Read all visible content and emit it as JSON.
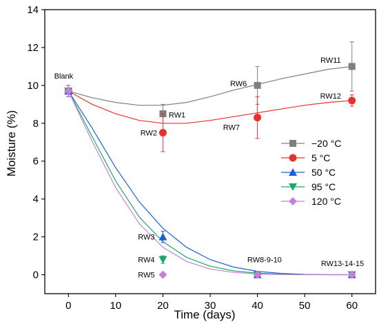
{
  "chart_data": {
    "type": "scatter",
    "xlabel": "Time (days)",
    "ylabel": "Moisture (%)",
    "xlim": [
      -5,
      65
    ],
    "ylim": [
      -1,
      14
    ],
    "xticks": [
      0,
      10,
      20,
      30,
      40,
      50,
      60
    ],
    "yticks": [
      0,
      2,
      4,
      6,
      8,
      10,
      12,
      14
    ],
    "legend_position": "center-right",
    "fit_curves": true,
    "series": [
      {
        "name": "−20 °C",
        "color": "#7f7f7f",
        "marker": "square",
        "x": [
          0,
          20,
          40,
          60
        ],
        "y": [
          9.7,
          8.5,
          10.0,
          11.0
        ],
        "err": [
          0.3,
          0.5,
          1.0,
          1.3
        ],
        "curve": [
          [
            0,
            9.7
          ],
          [
            5,
            9.35
          ],
          [
            10,
            9.1
          ],
          [
            15,
            8.95
          ],
          [
            20,
            8.95
          ],
          [
            25,
            9.1
          ],
          [
            30,
            9.4
          ],
          [
            35,
            9.75
          ],
          [
            40,
            10.05
          ],
          [
            45,
            10.35
          ],
          [
            50,
            10.6
          ],
          [
            55,
            10.85
          ],
          [
            60,
            11.0
          ]
        ]
      },
      {
        "name": "5 °C",
        "color": "#e8312f",
        "marker": "circle",
        "x": [
          0,
          20,
          40,
          60
        ],
        "y": [
          9.7,
          7.5,
          8.3,
          9.2
        ],
        "err": [
          0.3,
          1.0,
          1.1,
          0.3
        ],
        "curve": [
          [
            0,
            9.7
          ],
          [
            5,
            9.0
          ],
          [
            10,
            8.5
          ],
          [
            15,
            8.15
          ],
          [
            20,
            8.0
          ],
          [
            25,
            8.0
          ],
          [
            30,
            8.15
          ],
          [
            35,
            8.35
          ],
          [
            40,
            8.55
          ],
          [
            45,
            8.75
          ],
          [
            50,
            8.95
          ],
          [
            55,
            9.1
          ],
          [
            60,
            9.2
          ]
        ]
      },
      {
        "name": "50 °C",
        "color": "#1f5fd6",
        "marker": "triangle-up",
        "x": [
          0,
          20,
          40,
          60
        ],
        "y": [
          9.7,
          2.0,
          0,
          0
        ],
        "err": [
          0.3,
          0.3,
          0.05,
          0.05
        ],
        "curve": [
          [
            0,
            9.7
          ],
          [
            5,
            7.75
          ],
          [
            10,
            5.65
          ],
          [
            15,
            3.85
          ],
          [
            20,
            2.45
          ],
          [
            25,
            1.45
          ],
          [
            30,
            0.8
          ],
          [
            35,
            0.4
          ],
          [
            40,
            0.18
          ],
          [
            45,
            0.07
          ],
          [
            50,
            0.02
          ],
          [
            55,
            0.0
          ],
          [
            60,
            0.0
          ]
        ]
      },
      {
        "name": "95 °C",
        "color": "#1aa86b",
        "marker": "triangle-down",
        "x": [
          0,
          20,
          40,
          60
        ],
        "y": [
          9.7,
          0.8,
          0,
          0
        ],
        "err": [
          0.3,
          0.2,
          0.05,
          0.05
        ],
        "curve": [
          [
            0,
            9.7
          ],
          [
            5,
            7.3
          ],
          [
            10,
            4.95
          ],
          [
            15,
            3.05
          ],
          [
            20,
            1.75
          ],
          [
            25,
            0.92
          ],
          [
            30,
            0.45
          ],
          [
            35,
            0.2
          ],
          [
            40,
            0.08
          ],
          [
            45,
            0.03
          ],
          [
            50,
            0.01
          ],
          [
            55,
            0.0
          ],
          [
            60,
            0.0
          ]
        ]
      },
      {
        "name": "120 °C",
        "color": "#c77fd9",
        "marker": "diamond",
        "x": [
          0,
          20,
          40,
          60
        ],
        "y": [
          9.7,
          0,
          0,
          0
        ],
        "err": [
          0.3,
          0.05,
          0.05,
          0.05
        ],
        "curve": [
          [
            0,
            9.7
          ],
          [
            5,
            7.05
          ],
          [
            10,
            4.6
          ],
          [
            15,
            2.7
          ],
          [
            20,
            1.45
          ],
          [
            25,
            0.7
          ],
          [
            30,
            0.3
          ],
          [
            35,
            0.12
          ],
          [
            40,
            0.04
          ],
          [
            45,
            0.01
          ],
          [
            50,
            0.0
          ],
          [
            55,
            0.0
          ],
          [
            60,
            0.0
          ]
        ]
      }
    ],
    "annotations": [
      {
        "text": "Blank",
        "x": -1,
        "y": 10.5
      },
      {
        "text": "RW1",
        "x": 23,
        "y": 8.45
      },
      {
        "text": "RW2",
        "x": 17,
        "y": 7.5
      },
      {
        "text": "RW6",
        "x": 36,
        "y": 10.1
      },
      {
        "text": "RW7",
        "x": 34.5,
        "y": 7.8
      },
      {
        "text": "RW11",
        "x": 55.5,
        "y": 11.35
      },
      {
        "text": "RW12",
        "x": 55.5,
        "y": 9.45
      },
      {
        "text": "RW3",
        "x": 16.5,
        "y": 2.0
      },
      {
        "text": "RW4",
        "x": 16.5,
        "y": 0.8
      },
      {
        "text": "RW5",
        "x": 16.5,
        "y": 0
      },
      {
        "text": "RW8-9-10",
        "x": 41.5,
        "y": 0.8
      },
      {
        "text": "RW13-14-15",
        "x": 58,
        "y": 0.6
      }
    ]
  }
}
